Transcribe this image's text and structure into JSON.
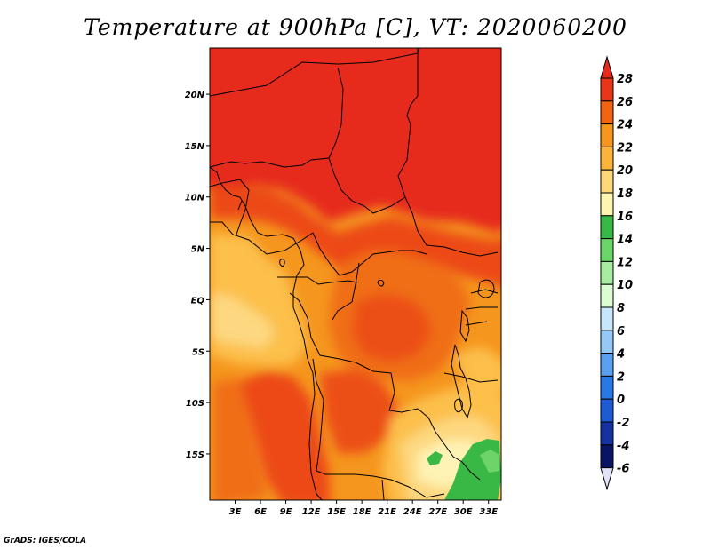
{
  "title": "Temperature at 900hPa [C], VT: 2020060200",
  "footer": "GrADS: IGES/COLA",
  "map": {
    "lon_range": [
      0,
      34.5
    ],
    "lat_range": [
      -19.5,
      24.5
    ],
    "x_ticks": [
      {
        "value": 3,
        "label": "3E"
      },
      {
        "value": 6,
        "label": "6E"
      },
      {
        "value": 9,
        "label": "9E"
      },
      {
        "value": 12,
        "label": "12E"
      },
      {
        "value": 15,
        "label": "15E"
      },
      {
        "value": 18,
        "label": "18E"
      },
      {
        "value": 21,
        "label": "21E"
      },
      {
        "value": 24,
        "label": "24E"
      },
      {
        "value": 27,
        "label": "27E"
      },
      {
        "value": 30,
        "label": "30E"
      },
      {
        "value": 33,
        "label": "33E"
      }
    ],
    "y_ticks": [
      {
        "value": 20,
        "label": "20N"
      },
      {
        "value": 15,
        "label": "15N"
      },
      {
        "value": 10,
        "label": "10N"
      },
      {
        "value": 5,
        "label": "5N"
      },
      {
        "value": 0,
        "label": "EQ"
      },
      {
        "value": -5,
        "label": "5S"
      },
      {
        "value": -10,
        "label": "10S"
      },
      {
        "value": -15,
        "label": "15S"
      }
    ]
  },
  "colorbar": {
    "levels": [
      {
        "value": "28"
      },
      {
        "value": "26"
      },
      {
        "value": "24"
      },
      {
        "value": "22"
      },
      {
        "value": "20"
      },
      {
        "value": "18"
      },
      {
        "value": "16"
      },
      {
        "value": "14"
      },
      {
        "value": "12"
      },
      {
        "value": "10"
      },
      {
        "value": "8"
      },
      {
        "value": "6"
      },
      {
        "value": "4"
      },
      {
        "value": "2"
      },
      {
        "value": "0"
      },
      {
        "value": "-2"
      },
      {
        "value": "-4"
      },
      {
        "value": "-6"
      }
    ],
    "colors_top_to_bottom": [
      "#e62a1e",
      "#e8361a",
      "#f06414",
      "#f5961e",
      "#fab43c",
      "#fdd87a",
      "#fef5b0",
      "#3ab846",
      "#6cd468",
      "#a8eca2",
      "#dcfcd4",
      "#c8e6fa",
      "#96c8f5",
      "#5aa0ee",
      "#2878e6",
      "#1e5ad2",
      "#1432a0",
      "#0a1464",
      "#e1e1fa"
    ]
  }
}
